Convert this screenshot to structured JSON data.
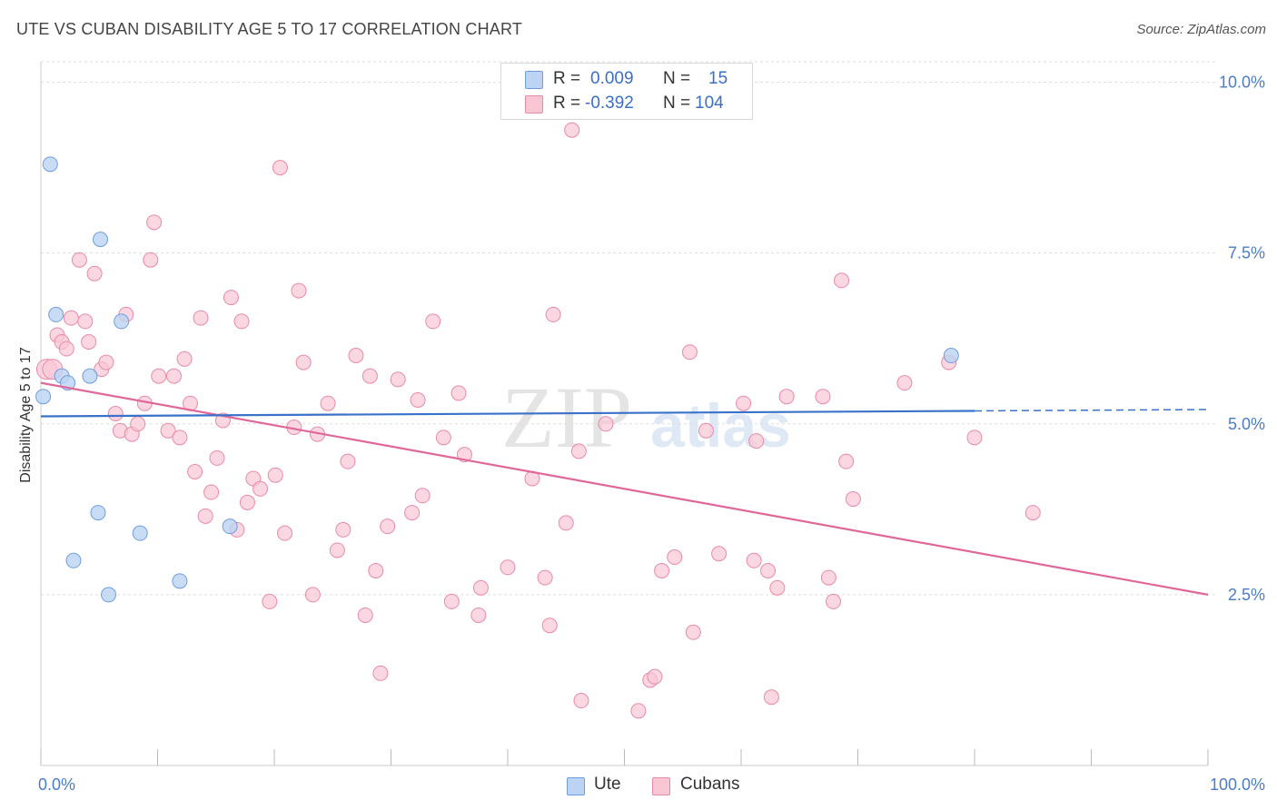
{
  "title": "UTE VS CUBAN DISABILITY AGE 5 TO 17 CORRELATION CHART",
  "source": "Source: ZipAtlas.com",
  "watermark": {
    "zip": "ZIP",
    "atlas": "atlas"
  },
  "legend": {
    "ute": {
      "r_label": "R =",
      "r_value": "0.009",
      "n_label": "N =",
      "n_value": "15"
    },
    "cubans": {
      "r_label": "R =",
      "r_value": "-0.392",
      "n_label": "N =",
      "n_value": "104"
    }
  },
  "bottom_legend": {
    "ute": "Ute",
    "cubans": "Cubans"
  },
  "colors": {
    "ute_fill": "#bcd3f3",
    "ute_stroke": "#6f9de0",
    "ute_line": "#3a72c9",
    "cubans_fill": "#f9c6d4",
    "cubans_stroke": "#e98aa8",
    "cubans_line": "#e0679a",
    "tick_text": "#4a7cc9",
    "grid": "#dddddd"
  },
  "chart_data": {
    "type": "scatter",
    "title": "UTE VS CUBAN DISABILITY AGE 5 TO 17 CORRELATION CHART",
    "xlabel": "",
    "ylabel": "Disability Age 5 to 17",
    "xlim": [
      0,
      100
    ],
    "ylim": [
      0,
      10.3
    ],
    "y_ticks": [
      {
        "value": 2.5,
        "label": "2.5%"
      },
      {
        "value": 5.0,
        "label": "5.0%"
      },
      {
        "value": 7.5,
        "label": "7.5%"
      },
      {
        "value": 10.0,
        "label": "10.0%"
      }
    ],
    "x_ticks": [
      {
        "value": 0,
        "label": "0.0%"
      },
      {
        "value": 100,
        "label": "100.0%"
      }
    ],
    "x_minor_ticks": [
      0,
      10,
      20,
      30,
      40,
      50,
      60,
      70,
      80,
      90,
      100
    ],
    "series": [
      {
        "name": "Ute",
        "points": [
          [
            0.2,
            5.4
          ],
          [
            0.8,
            8.8
          ],
          [
            1.3,
            6.6
          ],
          [
            1.8,
            5.7
          ],
          [
            2.3,
            5.6
          ],
          [
            2.8,
            3.0
          ],
          [
            4.2,
            5.7
          ],
          [
            4.9,
            3.7
          ],
          [
            5.1,
            7.7
          ],
          [
            5.8,
            2.5
          ],
          [
            6.9,
            6.5
          ],
          [
            8.5,
            3.4
          ],
          [
            11.9,
            2.7
          ],
          [
            16.2,
            3.5
          ],
          [
            78.0,
            6.0
          ]
        ],
        "trend": {
          "x0": 0,
          "y0": 5.11,
          "x1": 80,
          "y1": 5.19,
          "dash_to_x": 100,
          "dash_to_y": 5.21
        }
      },
      {
        "name": "Cubans",
        "points": [
          [
            0.5,
            5.8
          ],
          [
            1.0,
            5.8
          ],
          [
            1.4,
            6.3
          ],
          [
            1.8,
            6.2
          ],
          [
            2.2,
            6.1
          ],
          [
            2.6,
            6.55
          ],
          [
            3.3,
            7.4
          ],
          [
            3.8,
            6.5
          ],
          [
            4.1,
            6.2
          ],
          [
            4.6,
            7.2
          ],
          [
            5.2,
            5.8
          ],
          [
            5.6,
            5.9
          ],
          [
            6.4,
            5.15
          ],
          [
            6.8,
            4.9
          ],
          [
            7.3,
            6.6
          ],
          [
            7.8,
            4.85
          ],
          [
            8.3,
            5.0
          ],
          [
            8.9,
            5.3
          ],
          [
            9.4,
            7.4
          ],
          [
            9.7,
            7.95
          ],
          [
            10.1,
            5.7
          ],
          [
            10.9,
            4.9
          ],
          [
            11.4,
            5.7
          ],
          [
            11.9,
            4.8
          ],
          [
            12.3,
            5.95
          ],
          [
            12.8,
            5.3
          ],
          [
            13.2,
            4.3
          ],
          [
            13.7,
            6.55
          ],
          [
            14.1,
            3.65
          ],
          [
            14.6,
            4.0
          ],
          [
            15.1,
            4.5
          ],
          [
            15.6,
            5.05
          ],
          [
            16.3,
            6.85
          ],
          [
            16.8,
            3.45
          ],
          [
            17.2,
            6.5
          ],
          [
            17.7,
            3.85
          ],
          [
            18.2,
            4.2
          ],
          [
            18.8,
            4.05
          ],
          [
            19.6,
            2.4
          ],
          [
            20.1,
            4.25
          ],
          [
            20.5,
            8.75
          ],
          [
            20.9,
            3.4
          ],
          [
            21.7,
            4.95
          ],
          [
            22.1,
            6.95
          ],
          [
            22.5,
            5.9
          ],
          [
            23.3,
            2.5
          ],
          [
            23.7,
            4.85
          ],
          [
            24.6,
            5.3
          ],
          [
            25.4,
            3.15
          ],
          [
            25.9,
            3.45
          ],
          [
            26.3,
            4.45
          ],
          [
            27.0,
            6.0
          ],
          [
            27.8,
            2.2
          ],
          [
            28.2,
            5.7
          ],
          [
            28.7,
            2.85
          ],
          [
            29.1,
            1.35
          ],
          [
            29.7,
            3.5
          ],
          [
            30.6,
            5.65
          ],
          [
            31.8,
            3.7
          ],
          [
            32.3,
            5.35
          ],
          [
            32.7,
            3.95
          ],
          [
            33.6,
            6.5
          ],
          [
            34.5,
            4.8
          ],
          [
            35.2,
            2.4
          ],
          [
            35.8,
            5.45
          ],
          [
            36.3,
            4.55
          ],
          [
            37.5,
            2.2
          ],
          [
            37.7,
            2.6
          ],
          [
            40.0,
            2.9
          ],
          [
            42.1,
            4.2
          ],
          [
            43.2,
            2.75
          ],
          [
            43.6,
            2.05
          ],
          [
            43.9,
            6.6
          ],
          [
            45.0,
            3.55
          ],
          [
            45.5,
            9.3
          ],
          [
            46.1,
            4.6
          ],
          [
            46.3,
            0.95
          ],
          [
            48.4,
            5.0
          ],
          [
            51.2,
            0.8
          ],
          [
            52.2,
            1.25
          ],
          [
            52.6,
            1.3
          ],
          [
            53.2,
            2.85
          ],
          [
            54.3,
            3.05
          ],
          [
            55.6,
            6.05
          ],
          [
            55.9,
            1.95
          ],
          [
            57.0,
            4.9
          ],
          [
            58.1,
            3.1
          ],
          [
            60.2,
            5.3
          ],
          [
            61.1,
            3.0
          ],
          [
            61.3,
            4.75
          ],
          [
            62.3,
            2.85
          ],
          [
            62.6,
            1.0
          ],
          [
            63.1,
            2.6
          ],
          [
            63.9,
            5.4
          ],
          [
            67.0,
            5.4
          ],
          [
            67.5,
            2.75
          ],
          [
            67.9,
            2.4
          ],
          [
            68.6,
            7.1
          ],
          [
            69.0,
            4.45
          ],
          [
            69.6,
            3.9
          ],
          [
            74.0,
            5.6
          ],
          [
            77.8,
            5.9
          ],
          [
            80.0,
            4.8
          ],
          [
            85.0,
            3.7
          ]
        ],
        "trend": {
          "x0": 0,
          "y0": 5.6,
          "x1": 100,
          "y1": 2.5
        }
      }
    ]
  }
}
